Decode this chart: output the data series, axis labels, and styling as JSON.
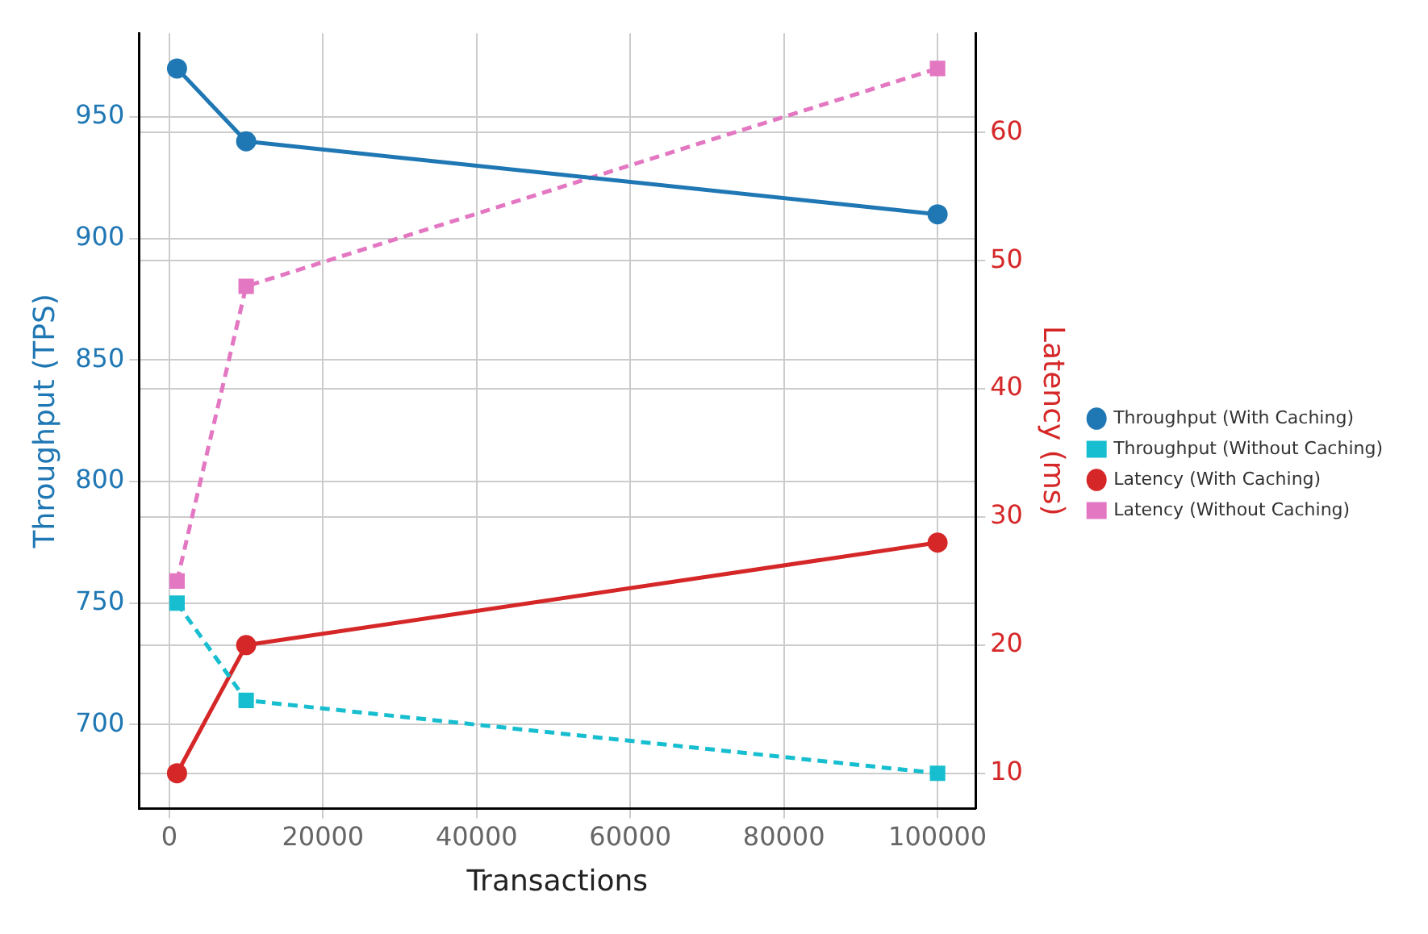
{
  "chart_data": {
    "type": "line",
    "xlabel": "Transactions",
    "ylabel": "Throughput (TPS)",
    "y2label": "Latency (ms)",
    "x": [
      1000,
      10000,
      100000
    ],
    "series": [
      {
        "name": "Throughput (With Caching)",
        "color": "#1f77b4",
        "values": [
          970,
          940,
          910
        ],
        "marker": "circle",
        "line_style": "solid"
      },
      {
        "name": "Throughput (Without Caching)",
        "color": "#17becf",
        "values": [
          750,
          710,
          680
        ],
        "marker": "square",
        "line_style": "dashed"
      },
      {
        "name": "Latency (With Caching)",
        "color": "#d62728",
        "values": [
          10,
          20,
          28
        ],
        "marker": "circle",
        "line_style": "solid",
        "axis": "y2"
      },
      {
        "name": "Latency (Without Caching)",
        "color": "#e377c2",
        "values": [
          25,
          48,
          65
        ],
        "marker": "square",
        "line_style": "dashed",
        "axis": "y2"
      }
    ],
    "xlim": [
      -3950,
      104950
    ],
    "xticks": [
      0,
      20000,
      40000,
      60000,
      80000,
      100000
    ],
    "ylim": [
      665.5,
      984.5
    ],
    "yticks": [
      700,
      750,
      800,
      850,
      900,
      950
    ],
    "y2lim": [
      7.25,
      67.75
    ],
    "y2ticks": [
      10,
      20,
      30,
      40,
      50,
      60
    ],
    "grid": true,
    "legend": "right"
  }
}
